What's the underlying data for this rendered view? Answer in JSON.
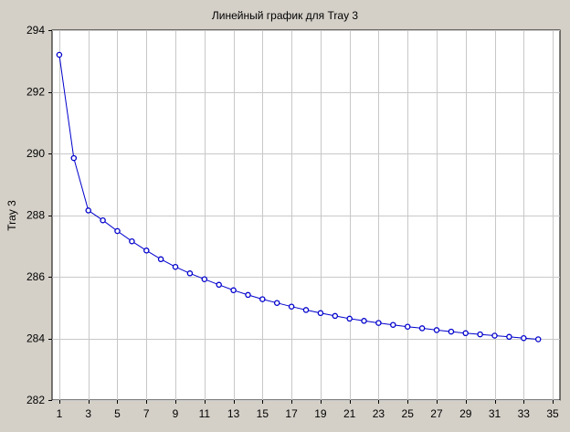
{
  "chart_data": {
    "type": "line",
    "title": "Линейный график для Tray 3",
    "xlabel": "",
    "ylabel": "Tray 3",
    "xlim": [
      0.5,
      35.5
    ],
    "ylim": [
      282,
      294
    ],
    "x_ticks": [
      1,
      3,
      5,
      7,
      9,
      11,
      13,
      15,
      17,
      19,
      21,
      23,
      25,
      27,
      29,
      31,
      33,
      35
    ],
    "y_ticks": [
      282,
      284,
      286,
      288,
      290,
      292,
      294
    ],
    "grid": true,
    "series": [
      {
        "color": "#0000cc",
        "marker": "circle",
        "x": [
          1,
          2,
          3,
          4,
          5,
          6,
          7,
          8,
          9,
          10,
          11,
          12,
          13,
          14,
          15,
          16,
          17,
          18,
          19,
          20,
          21,
          22,
          23,
          24,
          25,
          26,
          27,
          28,
          29,
          30,
          31,
          32,
          33,
          34
        ],
        "values": [
          293.2,
          289.85,
          288.15,
          287.83,
          287.48,
          287.15,
          286.85,
          286.57,
          286.32,
          286.11,
          285.92,
          285.74,
          285.56,
          285.41,
          285.27,
          285.15,
          285.03,
          284.92,
          284.82,
          284.73,
          284.64,
          284.57,
          284.5,
          284.44,
          284.38,
          284.33,
          284.27,
          284.22,
          284.17,
          284.13,
          284.09,
          284.05,
          284.01,
          283.97
        ]
      }
    ]
  }
}
